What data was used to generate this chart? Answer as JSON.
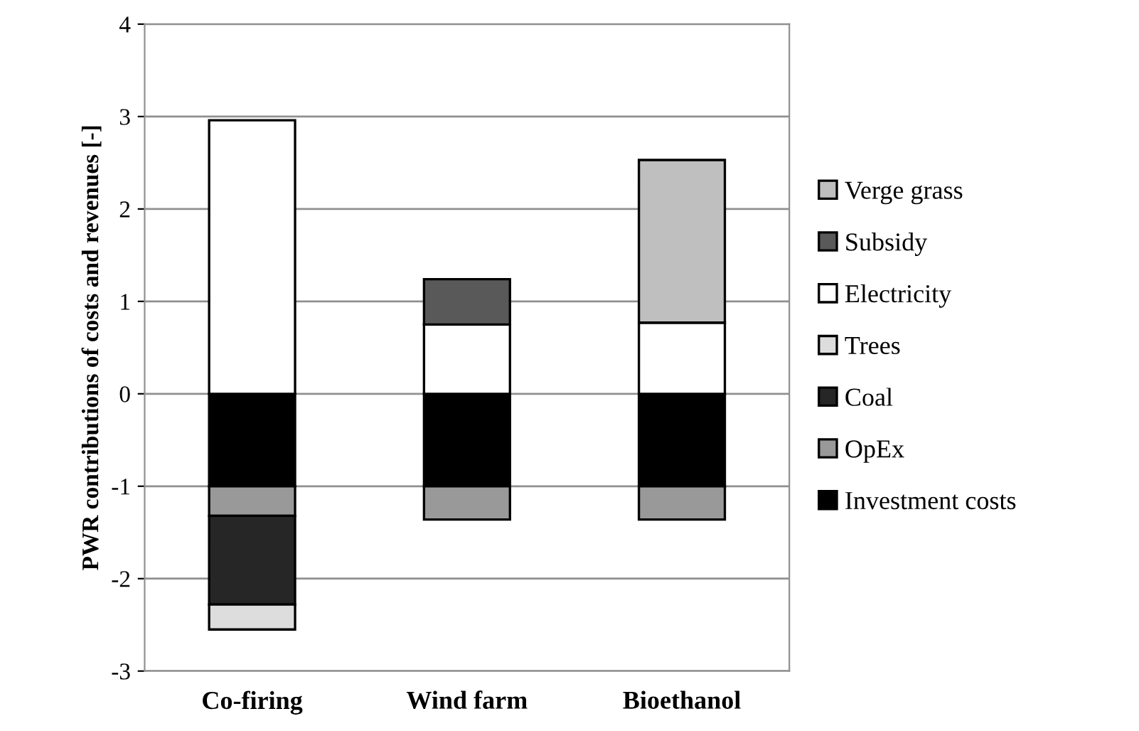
{
  "chart_data": {
    "type": "bar",
    "stacked": true,
    "ylabel": "PWR contributions of costs and revenues [-]",
    "categories": [
      "Co-firing",
      "Wind farm",
      "Bioethanol"
    ],
    "series": [
      {
        "name": "Investment costs",
        "color": "#000000",
        "values": [
          -1.0,
          -1.0,
          -1.0
        ]
      },
      {
        "name": "OpEx",
        "color": "#999999",
        "values": [
          -0.32,
          -0.36,
          -0.36
        ]
      },
      {
        "name": "Coal",
        "color": "#262626",
        "values": [
          -0.96,
          null,
          null
        ]
      },
      {
        "name": "Trees",
        "color": "#dddddd",
        "values": [
          -0.27,
          null,
          null
        ]
      },
      {
        "name": "Electricity",
        "color": "#ffffff",
        "values": [
          2.96,
          0.75,
          0.77
        ]
      },
      {
        "name": "Subsidy",
        "color": "#595959",
        "values": [
          null,
          0.49,
          null
        ]
      },
      {
        "name": "Verge grass",
        "color": "#bfbfbf",
        "values": [
          null,
          null,
          1.76
        ]
      }
    ],
    "ylim": [
      -3,
      4
    ],
    "yticks": [
      -3,
      -2,
      -1,
      0,
      1,
      2,
      3,
      4
    ],
    "grid": "y",
    "legend": "right"
  }
}
